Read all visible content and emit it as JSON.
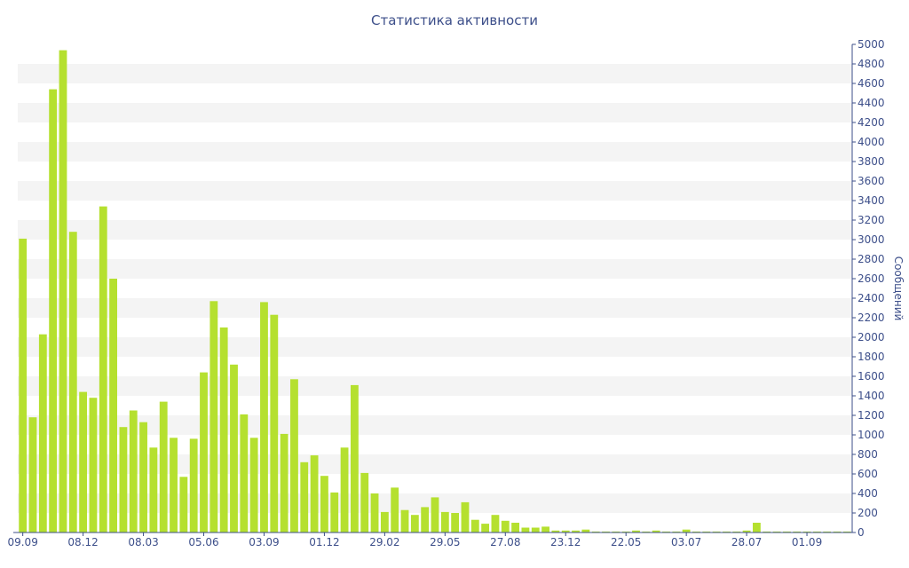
{
  "chart_data": {
    "type": "bar",
    "title": "Статистика активности",
    "xlabel": "",
    "ylabel": "Сообщений",
    "ylim": [
      0,
      5000
    ],
    "y_ticks": [
      0,
      200,
      400,
      600,
      800,
      1000,
      1200,
      1400,
      1600,
      1800,
      2000,
      2200,
      2400,
      2600,
      2800,
      3000,
      3200,
      3400,
      3600,
      3800,
      4000,
      4200,
      4400,
      4600,
      4800,
      5000
    ],
    "y_axis_side": "right",
    "grid": "alternating horizontal bands",
    "bar_color": "#b5e02f",
    "x_tick_labels": [
      {
        "label": "09.09",
        "bar_index": 0
      },
      {
        "label": "08.12",
        "bar_index": 6
      },
      {
        "label": "08.03",
        "bar_index": 12
      },
      {
        "label": "05.06",
        "bar_index": 18
      },
      {
        "label": "03.09",
        "bar_index": 24
      },
      {
        "label": "01.12",
        "bar_index": 30
      },
      {
        "label": "29.02",
        "bar_index": 36
      },
      {
        "label": "29.05",
        "bar_index": 42
      },
      {
        "label": "27.08",
        "bar_index": 48
      },
      {
        "label": "23.12",
        "bar_index": 54
      },
      {
        "label": "22.05",
        "bar_index": 60
      },
      {
        "label": "03.07",
        "bar_index": 66
      },
      {
        "label": "28.07",
        "bar_index": 72
      },
      {
        "label": "01.09",
        "bar_index": 78
      }
    ],
    "values": [
      3010,
      1180,
      2030,
      4540,
      4940,
      3080,
      1440,
      1380,
      3340,
      2600,
      1080,
      1250,
      1130,
      870,
      1340,
      970,
      570,
      960,
      1640,
      2370,
      2100,
      1720,
      1210,
      970,
      2360,
      2230,
      1010,
      1570,
      720,
      790,
      580,
      410,
      870,
      1510,
      610,
      400,
      210,
      460,
      230,
      180,
      260,
      360,
      210,
      200,
      310,
      130,
      90,
      180,
      120,
      100,
      50,
      50,
      60,
      20,
      20,
      20,
      30,
      10,
      10,
      10,
      10,
      20,
      10,
      20,
      10,
      10,
      30,
      10,
      10,
      10,
      10,
      10,
      20,
      100,
      10,
      10,
      10,
      10,
      10,
      10,
      10,
      10,
      10
    ]
  }
}
